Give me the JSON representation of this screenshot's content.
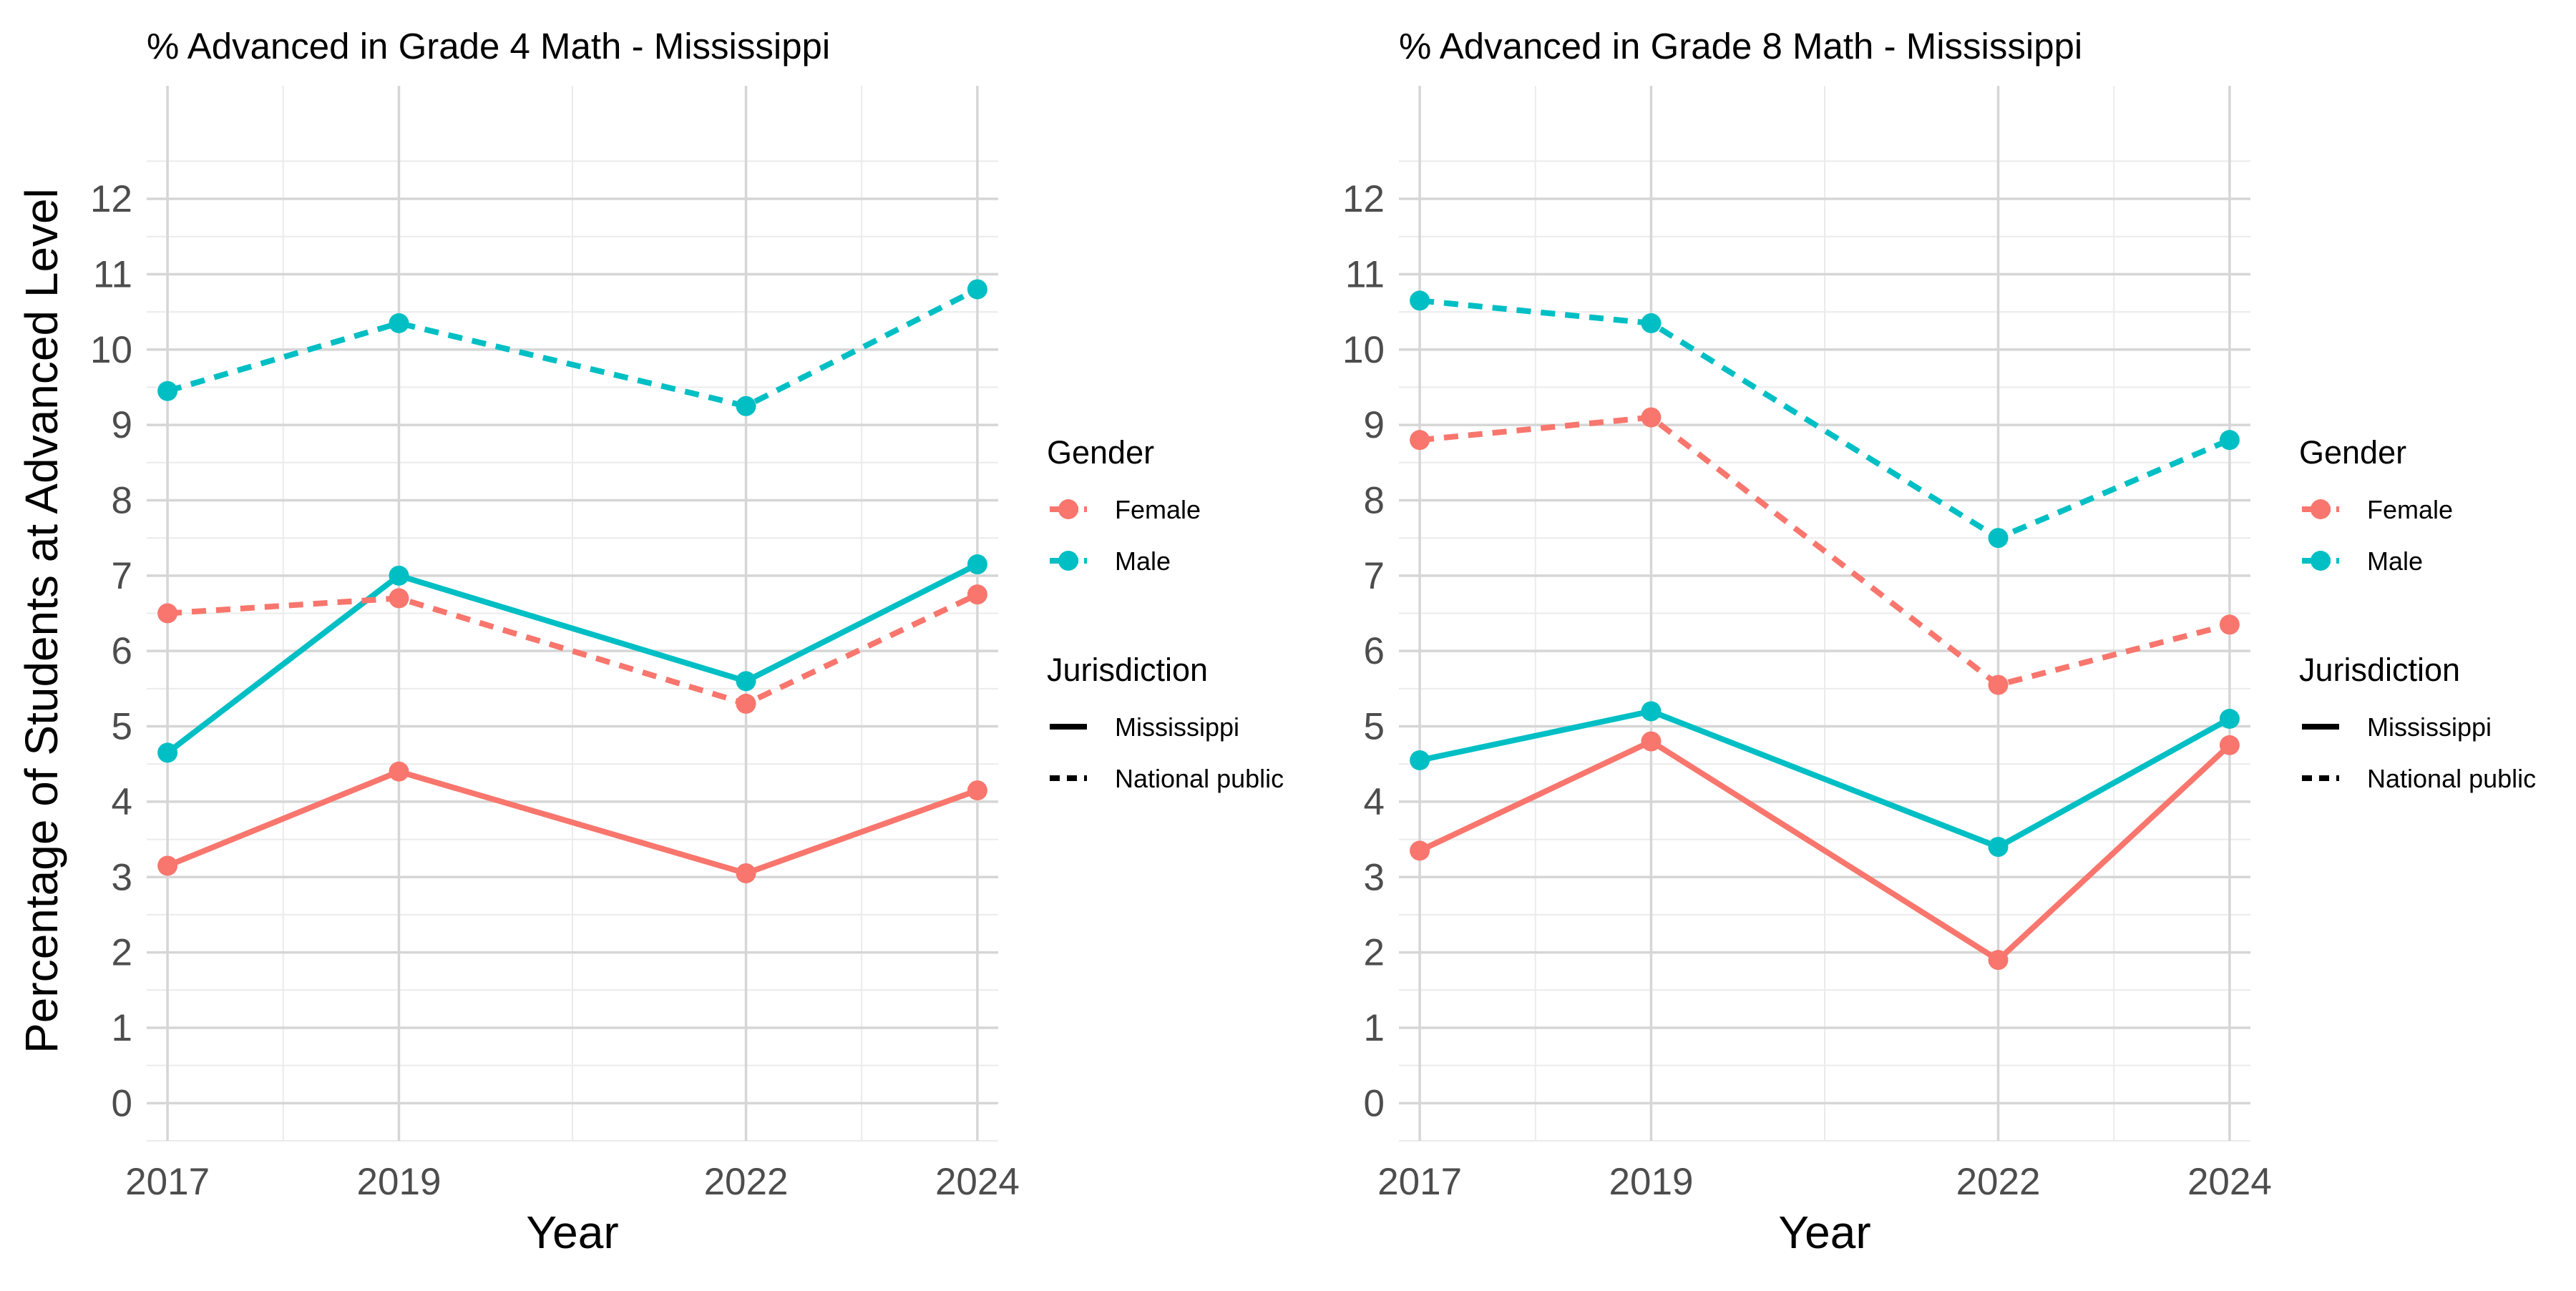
{
  "shared": {
    "ylabel": "Percentage of Students at Advanced Level",
    "xlabel": "Year",
    "legend_gender_title": "Gender",
    "legend_jurisdiction_title": "Jurisdiction",
    "gender_labels": [
      "Female",
      "Male"
    ],
    "jurisdiction_labels": [
      "Mississippi",
      "National public"
    ],
    "colors": {
      "Female": "#F8766D",
      "Male": "#00BFC4"
    }
  },
  "chart_data": [
    {
      "type": "line",
      "title": "% Advanced in Grade 4 Math - Mississippi",
      "xlabel": "Year",
      "ylabel": "Percentage of Students at Advanced Level",
      "x": [
        2017,
        2019,
        2022,
        2024
      ],
      "xticks": [
        "2017",
        "2019",
        "2022",
        "2024"
      ],
      "ylim": [
        -0.5,
        13.5
      ],
      "yticks": [
        0,
        1,
        2,
        3,
        4,
        5,
        6,
        7,
        8,
        9,
        10,
        11,
        12
      ],
      "grid": true,
      "legend_position": "right",
      "series": [
        {
          "gender": "Female",
          "jurisdiction": "Mississippi",
          "values": [
            3.15,
            4.4,
            3.05,
            4.15
          ]
        },
        {
          "gender": "Male",
          "jurisdiction": "Mississippi",
          "values": [
            4.65,
            7.0,
            5.6,
            7.15
          ]
        },
        {
          "gender": "Female",
          "jurisdiction": "National public",
          "values": [
            6.5,
            6.7,
            5.3,
            6.75
          ]
        },
        {
          "gender": "Male",
          "jurisdiction": "National public",
          "values": [
            9.45,
            10.35,
            9.25,
            10.8
          ]
        }
      ]
    },
    {
      "type": "line",
      "title": "% Advanced in Grade 8 Math - Mississippi",
      "xlabel": "Year",
      "ylabel": "",
      "x": [
        2017,
        2019,
        2022,
        2024
      ],
      "xticks": [
        "2017",
        "2019",
        "2022",
        "2024"
      ],
      "ylim": [
        -0.5,
        13.5
      ],
      "yticks": [
        0,
        1,
        2,
        3,
        4,
        5,
        6,
        7,
        8,
        9,
        10,
        11,
        12
      ],
      "grid": true,
      "legend_position": "right",
      "series": [
        {
          "gender": "Female",
          "jurisdiction": "Mississippi",
          "values": [
            3.35,
            4.8,
            1.9,
            4.75
          ]
        },
        {
          "gender": "Male",
          "jurisdiction": "Mississippi",
          "values": [
            4.55,
            5.2,
            3.4,
            5.1
          ]
        },
        {
          "gender": "Female",
          "jurisdiction": "National public",
          "values": [
            8.8,
            9.1,
            5.55,
            6.35
          ]
        },
        {
          "gender": "Male",
          "jurisdiction": "National public",
          "values": [
            10.65,
            10.35,
            7.5,
            8.8
          ]
        }
      ]
    }
  ]
}
